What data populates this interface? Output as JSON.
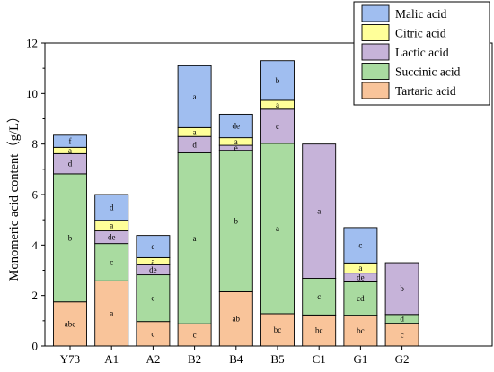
{
  "chart_data": {
    "type": "bar",
    "stacked": true,
    "title": "",
    "xlabel": "",
    "ylabel": "Monomeric acid content（g/L）",
    "ylim": [
      0,
      12
    ],
    "yticks": [
      0,
      2,
      4,
      6,
      8,
      10,
      12
    ],
    "grid": false,
    "legend_position": "top-right",
    "categories": [
      "Y73",
      "A1",
      "A2",
      "B2",
      "B4",
      "B5",
      "C1",
      "G1",
      "G2"
    ],
    "series": [
      {
        "name": "Tartaric acid",
        "color": "#f9c49a",
        "values": [
          1.75,
          2.58,
          0.97,
          0.88,
          2.15,
          1.28,
          1.23,
          1.22,
          0.9
        ],
        "labels": [
          "abc",
          "a",
          "c",
          "c",
          "ab",
          "bc",
          "bc",
          "bc",
          "c"
        ]
      },
      {
        "name": "Succinic acid",
        "color": "#a9dba0",
        "values": [
          5.07,
          1.48,
          1.85,
          6.77,
          5.6,
          6.75,
          1.45,
          1.32,
          0.35
        ],
        "labels": [
          "b",
          "c",
          "c",
          "a",
          "b",
          "a",
          "c",
          "cd",
          "d"
        ]
      },
      {
        "name": "Lactic acid",
        "color": "#c6b3d9",
        "values": [
          0.8,
          0.5,
          0.4,
          0.65,
          0.2,
          1.35,
          5.32,
          0.35,
          2.05
        ],
        "labels": [
          "d",
          "de",
          "de",
          "d",
          "e",
          "c",
          "a",
          "de",
          "b"
        ]
      },
      {
        "name": "Citric acid",
        "color": "#ffff99",
        "values": [
          0.25,
          0.42,
          0.28,
          0.35,
          0.3,
          0.35,
          0,
          0.4,
          0
        ],
        "labels": [
          "a",
          "a",
          "a",
          "a",
          "a",
          "a",
          "",
          "a",
          ""
        ]
      },
      {
        "name": "Malic acid",
        "color": "#a0bef0",
        "values": [
          0.48,
          1.02,
          0.88,
          2.45,
          0.93,
          1.57,
          0,
          1.4,
          0
        ],
        "labels": [
          "f",
          "d",
          "e",
          "a",
          "de",
          "b",
          "",
          "c",
          ""
        ]
      }
    ]
  }
}
